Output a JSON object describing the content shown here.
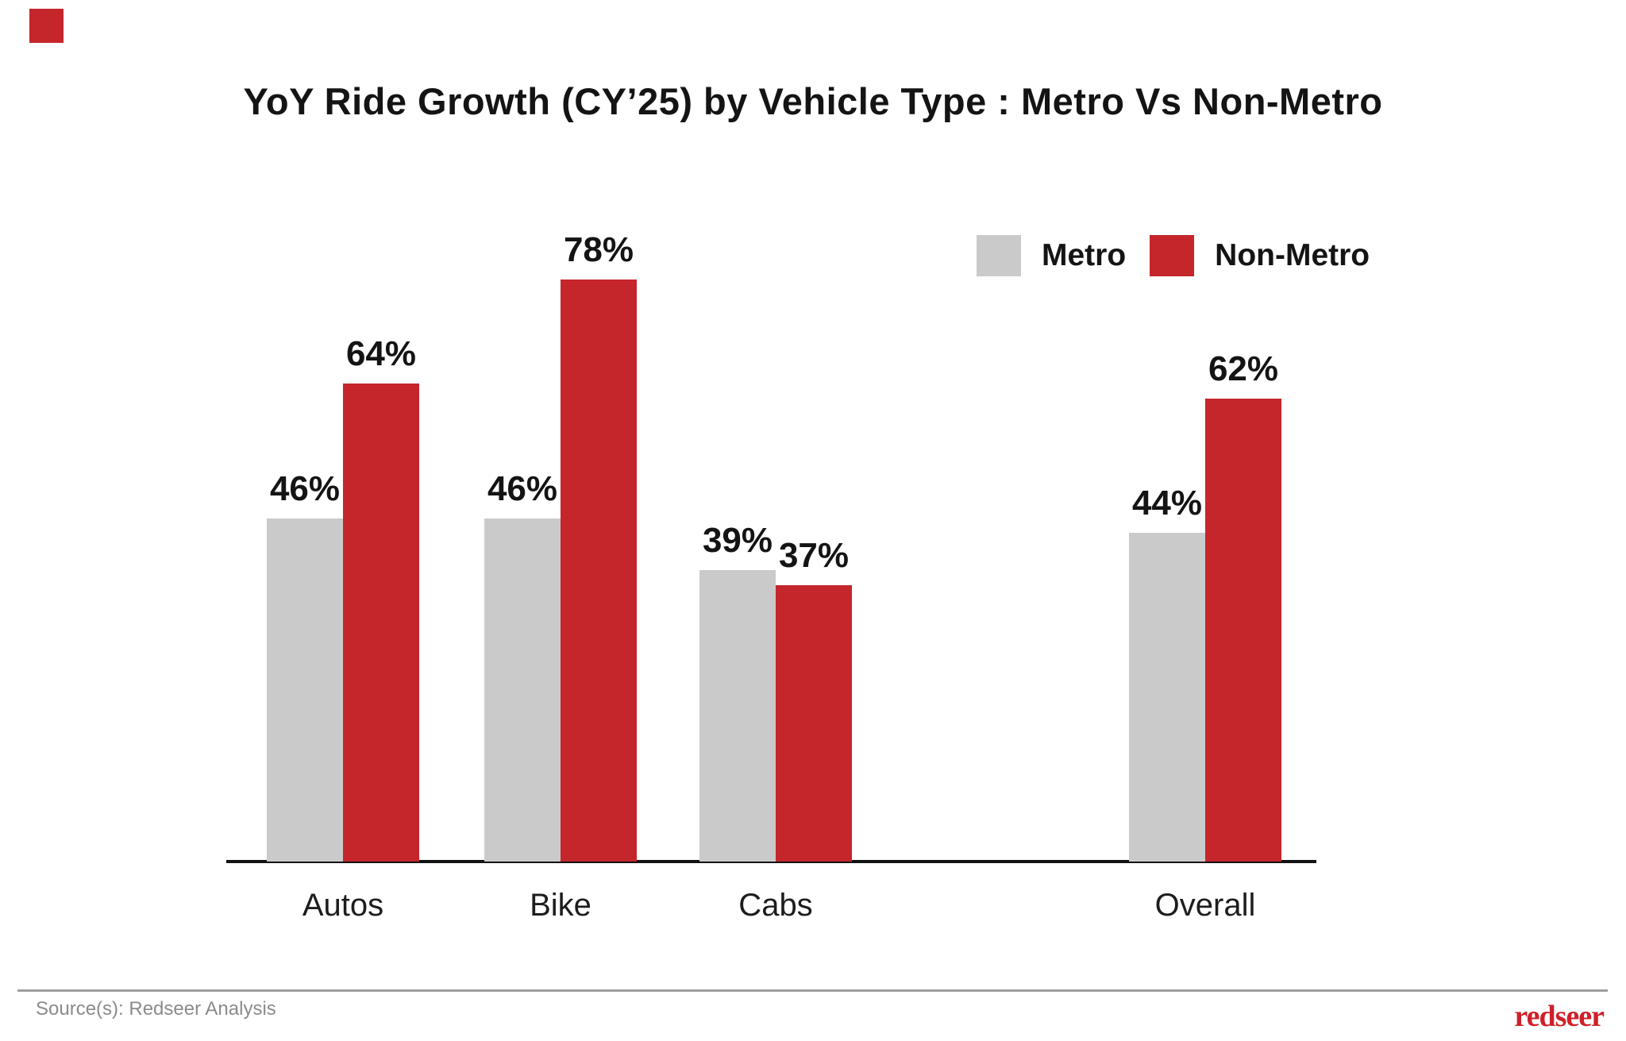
{
  "decor": {
    "corner_square_color": "#c4262c"
  },
  "title": "YoY Ride Growth (CY’25) by Vehicle Type : Metro Vs Non-Metro",
  "chart_data": {
    "type": "bar",
    "title": "YoY Ride Growth (CY’25) by Vehicle Type : Metro Vs Non-Metro",
    "categories": [
      "Autos",
      "Bike",
      "Cabs",
      "Overall"
    ],
    "series": [
      {
        "name": "Metro",
        "color": "#cbcaca",
        "values": [
          46,
          46,
          39,
          44
        ]
      },
      {
        "name": "Non-Metro",
        "color": "#c4262c",
        "values": [
          64,
          78,
          37,
          62
        ]
      }
    ],
    "value_suffix": "%",
    "data_labels": [
      [
        "46%",
        "46%",
        "39%",
        "44%"
      ],
      [
        "64%",
        "78%",
        "37%",
        "62%"
      ]
    ],
    "xlabel": "",
    "ylabel": "",
    "ylim": [
      0,
      100
    ],
    "grid": false,
    "legend_position": "top-right",
    "axis_color": "#121212",
    "label_color": "#141414"
  },
  "footer": {
    "source": "Source(s): Redseer Analysis",
    "logo_text": "redseer",
    "logo_color": "#ce2029"
  }
}
